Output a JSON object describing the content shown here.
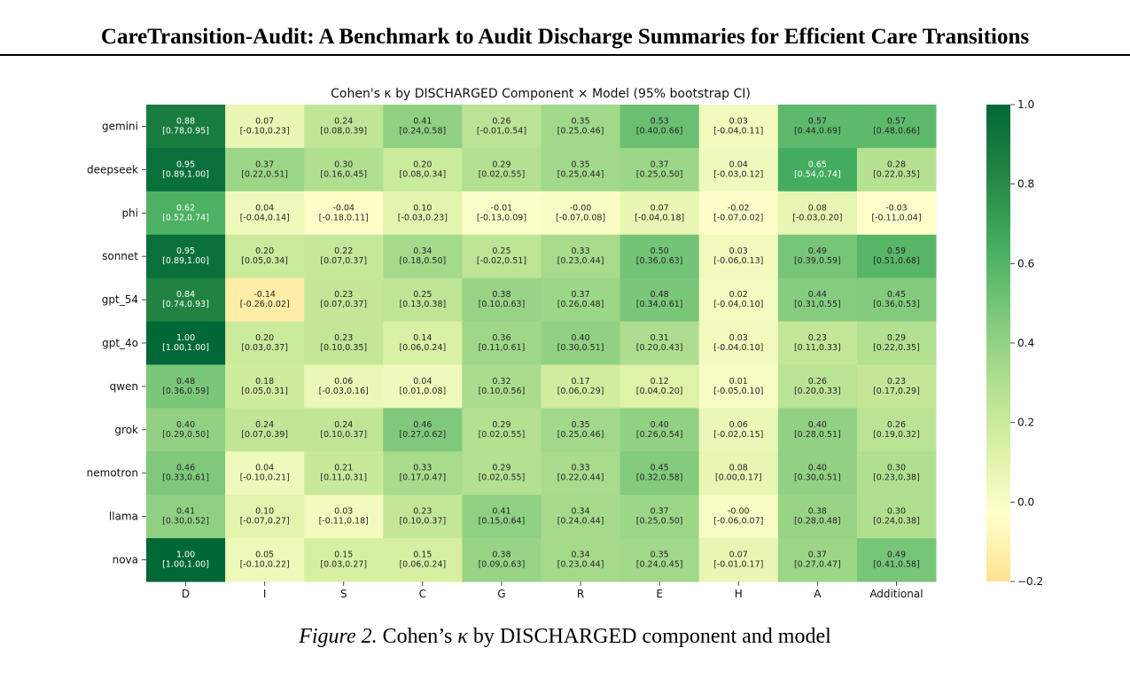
{
  "paper": {
    "title": "CareTransition-Audit: A Benchmark to Audit Discharge Summaries for Efficient Care Transitions"
  },
  "caption": {
    "label": "Figure 2.",
    "text_before": "Cohen’s",
    "symbol": "κ",
    "text_after": "by DISCHARGED component and model"
  },
  "chart_data": {
    "type": "heatmap",
    "title": "Cohen's κ by DISCHARGED Component × Model (95% bootstrap CI)",
    "xlabel": "",
    "ylabel": "",
    "columns": [
      "D",
      "I",
      "S",
      "C",
      "G",
      "R",
      "E",
      "H",
      "A",
      "Additional"
    ],
    "rows": [
      "gemini",
      "deepseek",
      "phi",
      "sonnet",
      "gpt_54",
      "gpt_4o",
      "qwen",
      "grok",
      "nemotron",
      "llama",
      "nova"
    ],
    "values": [
      [
        0.88,
        0.07,
        0.24,
        0.41,
        0.26,
        0.35,
        0.53,
        0.03,
        0.57,
        0.57
      ],
      [
        0.95,
        0.37,
        0.3,
        0.2,
        0.29,
        0.35,
        0.37,
        0.04,
        0.65,
        0.28
      ],
      [
        0.62,
        0.04,
        -0.04,
        0.1,
        -0.01,
        -0.0,
        0.07,
        -0.02,
        0.08,
        -0.03
      ],
      [
        0.95,
        0.2,
        0.22,
        0.34,
        0.25,
        0.33,
        0.5,
        0.03,
        0.49,
        0.59
      ],
      [
        0.84,
        -0.14,
        0.23,
        0.25,
        0.38,
        0.37,
        0.48,
        0.02,
        0.44,
        0.45
      ],
      [
        1.0,
        0.2,
        0.23,
        0.14,
        0.36,
        0.4,
        0.31,
        0.03,
        0.23,
        0.29
      ],
      [
        0.48,
        0.18,
        0.06,
        0.04,
        0.32,
        0.17,
        0.12,
        0.01,
        0.26,
        0.23
      ],
      [
        0.4,
        0.24,
        0.24,
        0.46,
        0.29,
        0.35,
        0.4,
        0.06,
        0.4,
        0.26
      ],
      [
        0.46,
        0.04,
        0.21,
        0.33,
        0.29,
        0.33,
        0.45,
        0.08,
        0.4,
        0.3
      ],
      [
        0.41,
        0.1,
        0.03,
        0.23,
        0.41,
        0.34,
        0.37,
        -0.0,
        0.38,
        0.3
      ],
      [
        1.0,
        0.05,
        0.15,
        0.15,
        0.38,
        0.34,
        0.35,
        0.07,
        0.37,
        0.49
      ]
    ],
    "value_labels": [
      [
        "0.88",
        "0.07",
        "0.24",
        "0.41",
        "0.26",
        "0.35",
        "0.53",
        "0.03",
        "0.57",
        "0.57"
      ],
      [
        "0.95",
        "0.37",
        "0.30",
        "0.20",
        "0.29",
        "0.35",
        "0.37",
        "0.04",
        "0.65",
        "0.28"
      ],
      [
        "0.62",
        "0.04",
        "-0.04",
        "0.10",
        "-0.01",
        "-0.00",
        "0.07",
        "-0.02",
        "0.08",
        "-0.03"
      ],
      [
        "0.95",
        "0.20",
        "0.22",
        "0.34",
        "0.25",
        "0.33",
        "0.50",
        "0.03",
        "0.49",
        "0.59"
      ],
      [
        "0.84",
        "-0.14",
        "0.23",
        "0.25",
        "0.38",
        "0.37",
        "0.48",
        "0.02",
        "0.44",
        "0.45"
      ],
      [
        "1.00",
        "0.20",
        "0.23",
        "0.14",
        "0.36",
        "0.40",
        "0.31",
        "0.03",
        "0.23",
        "0.29"
      ],
      [
        "0.48",
        "0.18",
        "0.06",
        "0.04",
        "0.32",
        "0.17",
        "0.12",
        "0.01",
        "0.26",
        "0.23"
      ],
      [
        "0.40",
        "0.24",
        "0.24",
        "0.46",
        "0.29",
        "0.35",
        "0.40",
        "0.06",
        "0.40",
        "0.26"
      ],
      [
        "0.46",
        "0.04",
        "0.21",
        "0.33",
        "0.29",
        "0.33",
        "0.45",
        "0.08",
        "0.40",
        "0.30"
      ],
      [
        "0.41",
        "0.10",
        "0.03",
        "0.23",
        "0.41",
        "0.34",
        "0.37",
        "-0.00",
        "0.38",
        "0.30"
      ],
      [
        "1.00",
        "0.05",
        "0.15",
        "0.15",
        "0.38",
        "0.34",
        "0.35",
        "0.07",
        "0.37",
        "0.49"
      ]
    ],
    "ci_labels": [
      [
        "[0.78,0.95]",
        "[-0.10,0.23]",
        "[0.08,0.39]",
        "[0.24,0.58]",
        "[-0.01,0.54]",
        "[0.25,0.46]",
        "[0.40,0.66]",
        "[-0.04,0.11]",
        "[0.44,0.69]",
        "[0.48,0.66]"
      ],
      [
        "[0.89,1.00]",
        "[0.22,0.51]",
        "[0.16,0.45]",
        "[0.08,0.34]",
        "[0.02,0.55]",
        "[0.25,0.44]",
        "[0.25,0.50]",
        "[-0.03,0.12]",
        "[0.54,0.74]",
        "[0.22,0.35]"
      ],
      [
        "[0.52,0.74]",
        "[-0.04,0.14]",
        "[-0.18,0.11]",
        "[-0.03,0.23]",
        "[-0.13,0.09]",
        "[-0.07,0.08]",
        "[-0.04,0.18]",
        "[-0.07,0.02]",
        "[-0.03,0.20]",
        "[-0.11,0.04]"
      ],
      [
        "[0.89,1.00]",
        "[0.05,0.34]",
        "[0.07,0.37]",
        "[0.18,0.50]",
        "[-0.02,0.51]",
        "[0.23,0.44]",
        "[0.36,0.63]",
        "[-0.06,0.13]",
        "[0.39,0.59]",
        "[0.51,0.68]"
      ],
      [
        "[0.74,0.93]",
        "[-0.26,0.02]",
        "[0.07,0.37]",
        "[0.13,0.38]",
        "[0.10,0.63]",
        "[0.26,0.48]",
        "[0.34,0.61]",
        "[-0.04,0.10]",
        "[0.31,0.55]",
        "[0.36,0.53]"
      ],
      [
        "[1.00,1.00]",
        "[0.03,0.37]",
        "[0.10,0.35]",
        "[0.06,0.24]",
        "[0.11,0.61]",
        "[0.30,0.51]",
        "[0.20,0.43]",
        "[-0.04,0.10]",
        "[0.11,0.33]",
        "[0.22,0.35]"
      ],
      [
        "[0.36,0.59]",
        "[0.05,0.31]",
        "[-0.03,0.16]",
        "[0.01,0.08]",
        "[0.10,0.56]",
        "[0.06,0.29]",
        "[0.04,0.20]",
        "[-0.05,0.10]",
        "[0.20,0.33]",
        "[0.17,0.29]"
      ],
      [
        "[0.29,0.50]",
        "[0.07,0.39]",
        "[0.10,0.37]",
        "[0.27,0.62]",
        "[0.02,0.55]",
        "[0.25,0.46]",
        "[0.26,0.54]",
        "[-0.02,0.15]",
        "[0.28,0.51]",
        "[0.19,0.32]"
      ],
      [
        "[0.33,0.61]",
        "[-0.10,0.21]",
        "[0.11,0.31]",
        "[0.17,0.47]",
        "[0.02,0.55]",
        "[0.22,0.44]",
        "[0.32,0.58]",
        "[0.00,0.17]",
        "[0.30,0.51]",
        "[0.23,0.38]"
      ],
      [
        "[0.30,0.52]",
        "[-0.07,0.27]",
        "[-0.11,0.18]",
        "[0.10,0.37]",
        "[0.15,0.64]",
        "[0.24,0.44]",
        "[0.25,0.50]",
        "[-0.06,0.07]",
        "[0.28,0.48]",
        "[0.24,0.38]"
      ],
      [
        "[1.00,1.00]",
        "[-0.10,0.22]",
        "[0.03,0.27]",
        "[0.06,0.24]",
        "[0.09,0.63]",
        "[0.23,0.44]",
        "[0.24,0.45]",
        "[-0.01,0.17]",
        "[0.27,0.47]",
        "[0.41,0.58]"
      ]
    ],
    "colorbar": {
      "min": -0.2,
      "max": 1.0,
      "ticks": [
        -0.2,
        0.0,
        0.2,
        0.4,
        0.6,
        0.8,
        1.0
      ],
      "tick_labels": [
        "−0.2",
        "0.0",
        "0.2",
        "0.4",
        "0.6",
        "0.8",
        "1.0"
      ],
      "colormap": "yellow-green",
      "colors": [
        "#fee391",
        "#ffffcc",
        "#d9f0a3",
        "#addd8e",
        "#78c679",
        "#41ab5d",
        "#238443",
        "#006837"
      ]
    },
    "grid": false
  }
}
